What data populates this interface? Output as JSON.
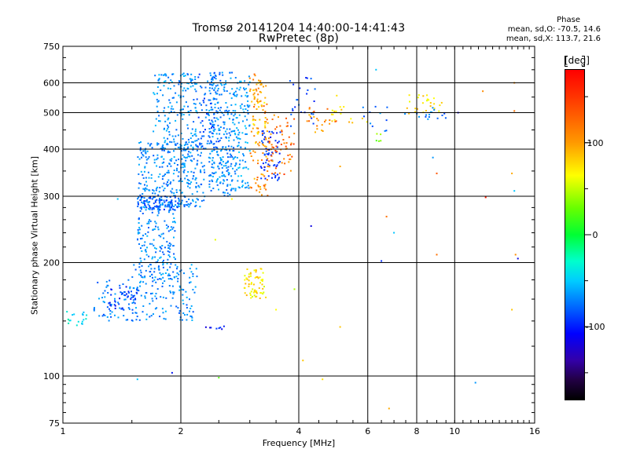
{
  "chart_data": {
    "type": "scatter",
    "title": "Tromsø 20141204 14:40:00-14:41:43",
    "subtitle": "RwPretec (8p)",
    "xlabel": "Frequency [MHz]",
    "ylabel": "Stationary phase Virtual Height [km]",
    "x_scale": "log",
    "y_scale": "log",
    "xlim": [
      1,
      16
    ],
    "ylim": [
      75,
      750
    ],
    "x_ticks": [
      "1",
      "2",
      "4",
      "6",
      "8",
      "10",
      "16"
    ],
    "x_tick_values": [
      1,
      2,
      4,
      6,
      8,
      10,
      16
    ],
    "y_ticks": [
      "75",
      "100",
      "200",
      "300",
      "400",
      "500",
      "600",
      "750"
    ],
    "y_tick_values": [
      75,
      100,
      200,
      300,
      400,
      500,
      600,
      750
    ],
    "grid": true,
    "colorbar": {
      "label": "[deg]",
      "range": [
        -180,
        180
      ],
      "ticks": [
        "100",
        "0",
        "-100"
      ],
      "tick_values": [
        100,
        0,
        -100
      ]
    },
    "stats": {
      "heading": "Phase",
      "line_O": "mean, sd,O: -70.5, 14.6",
      "line_X": "mean, sd,X: 113.7, 21.6"
    },
    "clusters": [
      {
        "fmin": 1.0,
        "fmax": 1.15,
        "hmin": 135,
        "hmax": 150,
        "phase": -30,
        "n": 18
      },
      {
        "fmin": 1.2,
        "fmax": 1.55,
        "hmin": 140,
        "hmax": 180,
        "phase": -70,
        "n": 70
      },
      {
        "fmin": 1.3,
        "fmax": 1.55,
        "hmin": 150,
        "hmax": 175,
        "phase": -100,
        "n": 35
      },
      {
        "fmin": 1.5,
        "fmax": 2.2,
        "hmin": 140,
        "hmax": 200,
        "phase": -65,
        "n": 150
      },
      {
        "fmin": 1.55,
        "fmax": 1.95,
        "hmin": 180,
        "hmax": 290,
        "phase": -65,
        "n": 170
      },
      {
        "fmin": 1.55,
        "fmax": 2.3,
        "hmin": 280,
        "hmax": 420,
        "phase": -65,
        "n": 330
      },
      {
        "fmin": 1.7,
        "fmax": 2.2,
        "hmin": 400,
        "hmax": 640,
        "phase": -60,
        "n": 170
      },
      {
        "fmin": 1.55,
        "fmax": 2.0,
        "hmin": 275,
        "hmax": 300,
        "phase": -85,
        "n": 70
      },
      {
        "fmin": 2.35,
        "fmax": 2.75,
        "hmin": 300,
        "hmax": 640,
        "phase": -65,
        "n": 260
      },
      {
        "fmin": 2.2,
        "fmax": 2.5,
        "hmin": 400,
        "hmax": 640,
        "phase": -80,
        "n": 80
      },
      {
        "fmin": 2.75,
        "fmax": 3.0,
        "hmin": 310,
        "hmax": 630,
        "phase": -55,
        "n": 110
      },
      {
        "fmin": 3.0,
        "fmax": 3.35,
        "hmin": 300,
        "hmax": 640,
        "phase": 130,
        "n": 90
      },
      {
        "fmin": 3.05,
        "fmax": 3.3,
        "hmin": 400,
        "hmax": 620,
        "phase": 110,
        "n": 40
      },
      {
        "fmin": 3.2,
        "fmax": 3.6,
        "hmin": 330,
        "hmax": 450,
        "phase": -100,
        "n": 60
      },
      {
        "fmin": 3.35,
        "fmax": 3.9,
        "hmin": 340,
        "hmax": 500,
        "phase": 140,
        "n": 60
      },
      {
        "fmin": 2.9,
        "fmax": 3.25,
        "hmin": 160,
        "hmax": 195,
        "phase": 100,
        "n": 50
      },
      {
        "fmin": 3.0,
        "fmax": 3.3,
        "hmin": 160,
        "hmax": 175,
        "phase": 85,
        "n": 15
      },
      {
        "fmin": 3.8,
        "fmax": 4.4,
        "hmin": 460,
        "hmax": 620,
        "phase": -90,
        "n": 25
      },
      {
        "fmin": 4.2,
        "fmax": 5.0,
        "hmin": 440,
        "hmax": 520,
        "phase": 130,
        "n": 25
      },
      {
        "fmin": 4.8,
        "fmax": 6.0,
        "hmin": 470,
        "hmax": 520,
        "phase": 100,
        "n": 15
      },
      {
        "fmin": 5.8,
        "fmax": 7.5,
        "hmin": 440,
        "hmax": 520,
        "phase": -70,
        "n": 12
      },
      {
        "fmin": 7.5,
        "fmax": 9.3,
        "hmin": 490,
        "hmax": 560,
        "phase": 100,
        "n": 25
      },
      {
        "fmin": 8.0,
        "fmax": 9.5,
        "hmin": 480,
        "hmax": 520,
        "phase": -70,
        "n": 15
      },
      {
        "fmin": 2.3,
        "fmax": 2.6,
        "hmin": 133,
        "hmax": 136,
        "phase": -110,
        "n": 8
      },
      {
        "fmin": 6.3,
        "fmax": 6.5,
        "hmin": 410,
        "hmax": 440,
        "phase": 40,
        "n": 5
      }
    ],
    "isolated_points": [
      {
        "f": 1.38,
        "h": 295,
        "phase": -40
      },
      {
        "f": 1.9,
        "h": 102,
        "phase": -110
      },
      {
        "f": 1.55,
        "h": 98,
        "phase": -40
      },
      {
        "f": 2.5,
        "h": 99,
        "phase": 30
      },
      {
        "f": 2.45,
        "h": 230,
        "phase": 80
      },
      {
        "f": 2.7,
        "h": 295,
        "phase": 90
      },
      {
        "f": 3.5,
        "h": 150,
        "phase": 90
      },
      {
        "f": 3.9,
        "h": 170,
        "phase": 60
      },
      {
        "f": 4.3,
        "h": 250,
        "phase": -120
      },
      {
        "f": 4.1,
        "h": 110,
        "phase": 110
      },
      {
        "f": 4.6,
        "h": 98,
        "phase": 100
      },
      {
        "f": 5.1,
        "h": 135,
        "phase": 110
      },
      {
        "f": 5.1,
        "h": 360,
        "phase": 120
      },
      {
        "f": 5.0,
        "h": 555,
        "phase": 100
      },
      {
        "f": 6.5,
        "h": 202,
        "phase": -100
      },
      {
        "f": 6.8,
        "h": 82,
        "phase": 120
      },
      {
        "f": 6.7,
        "h": 265,
        "phase": 140
      },
      {
        "f": 7.0,
        "h": 240,
        "phase": -40
      },
      {
        "f": 8.8,
        "h": 380,
        "phase": -60
      },
      {
        "f": 9.0,
        "h": 345,
        "phase": 150
      },
      {
        "f": 9.0,
        "h": 210,
        "phase": 140
      },
      {
        "f": 10.2,
        "h": 500,
        "phase": -120
      },
      {
        "f": 11.3,
        "h": 96,
        "phase": -60
      },
      {
        "f": 12.0,
        "h": 298,
        "phase": 170
      },
      {
        "f": 14.0,
        "h": 345,
        "phase": 120
      },
      {
        "f": 14.2,
        "h": 310,
        "phase": -40
      },
      {
        "f": 14.3,
        "h": 210,
        "phase": 130
      },
      {
        "f": 14.5,
        "h": 205,
        "phase": -120
      },
      {
        "f": 14.0,
        "h": 150,
        "phase": 110
      },
      {
        "f": 14.2,
        "h": 600,
        "phase": 130
      },
      {
        "f": 14.2,
        "h": 505,
        "phase": 140
      },
      {
        "f": 6.3,
        "h": 650,
        "phase": -40
      },
      {
        "f": 11.8,
        "h": 570,
        "phase": 130
      }
    ]
  }
}
